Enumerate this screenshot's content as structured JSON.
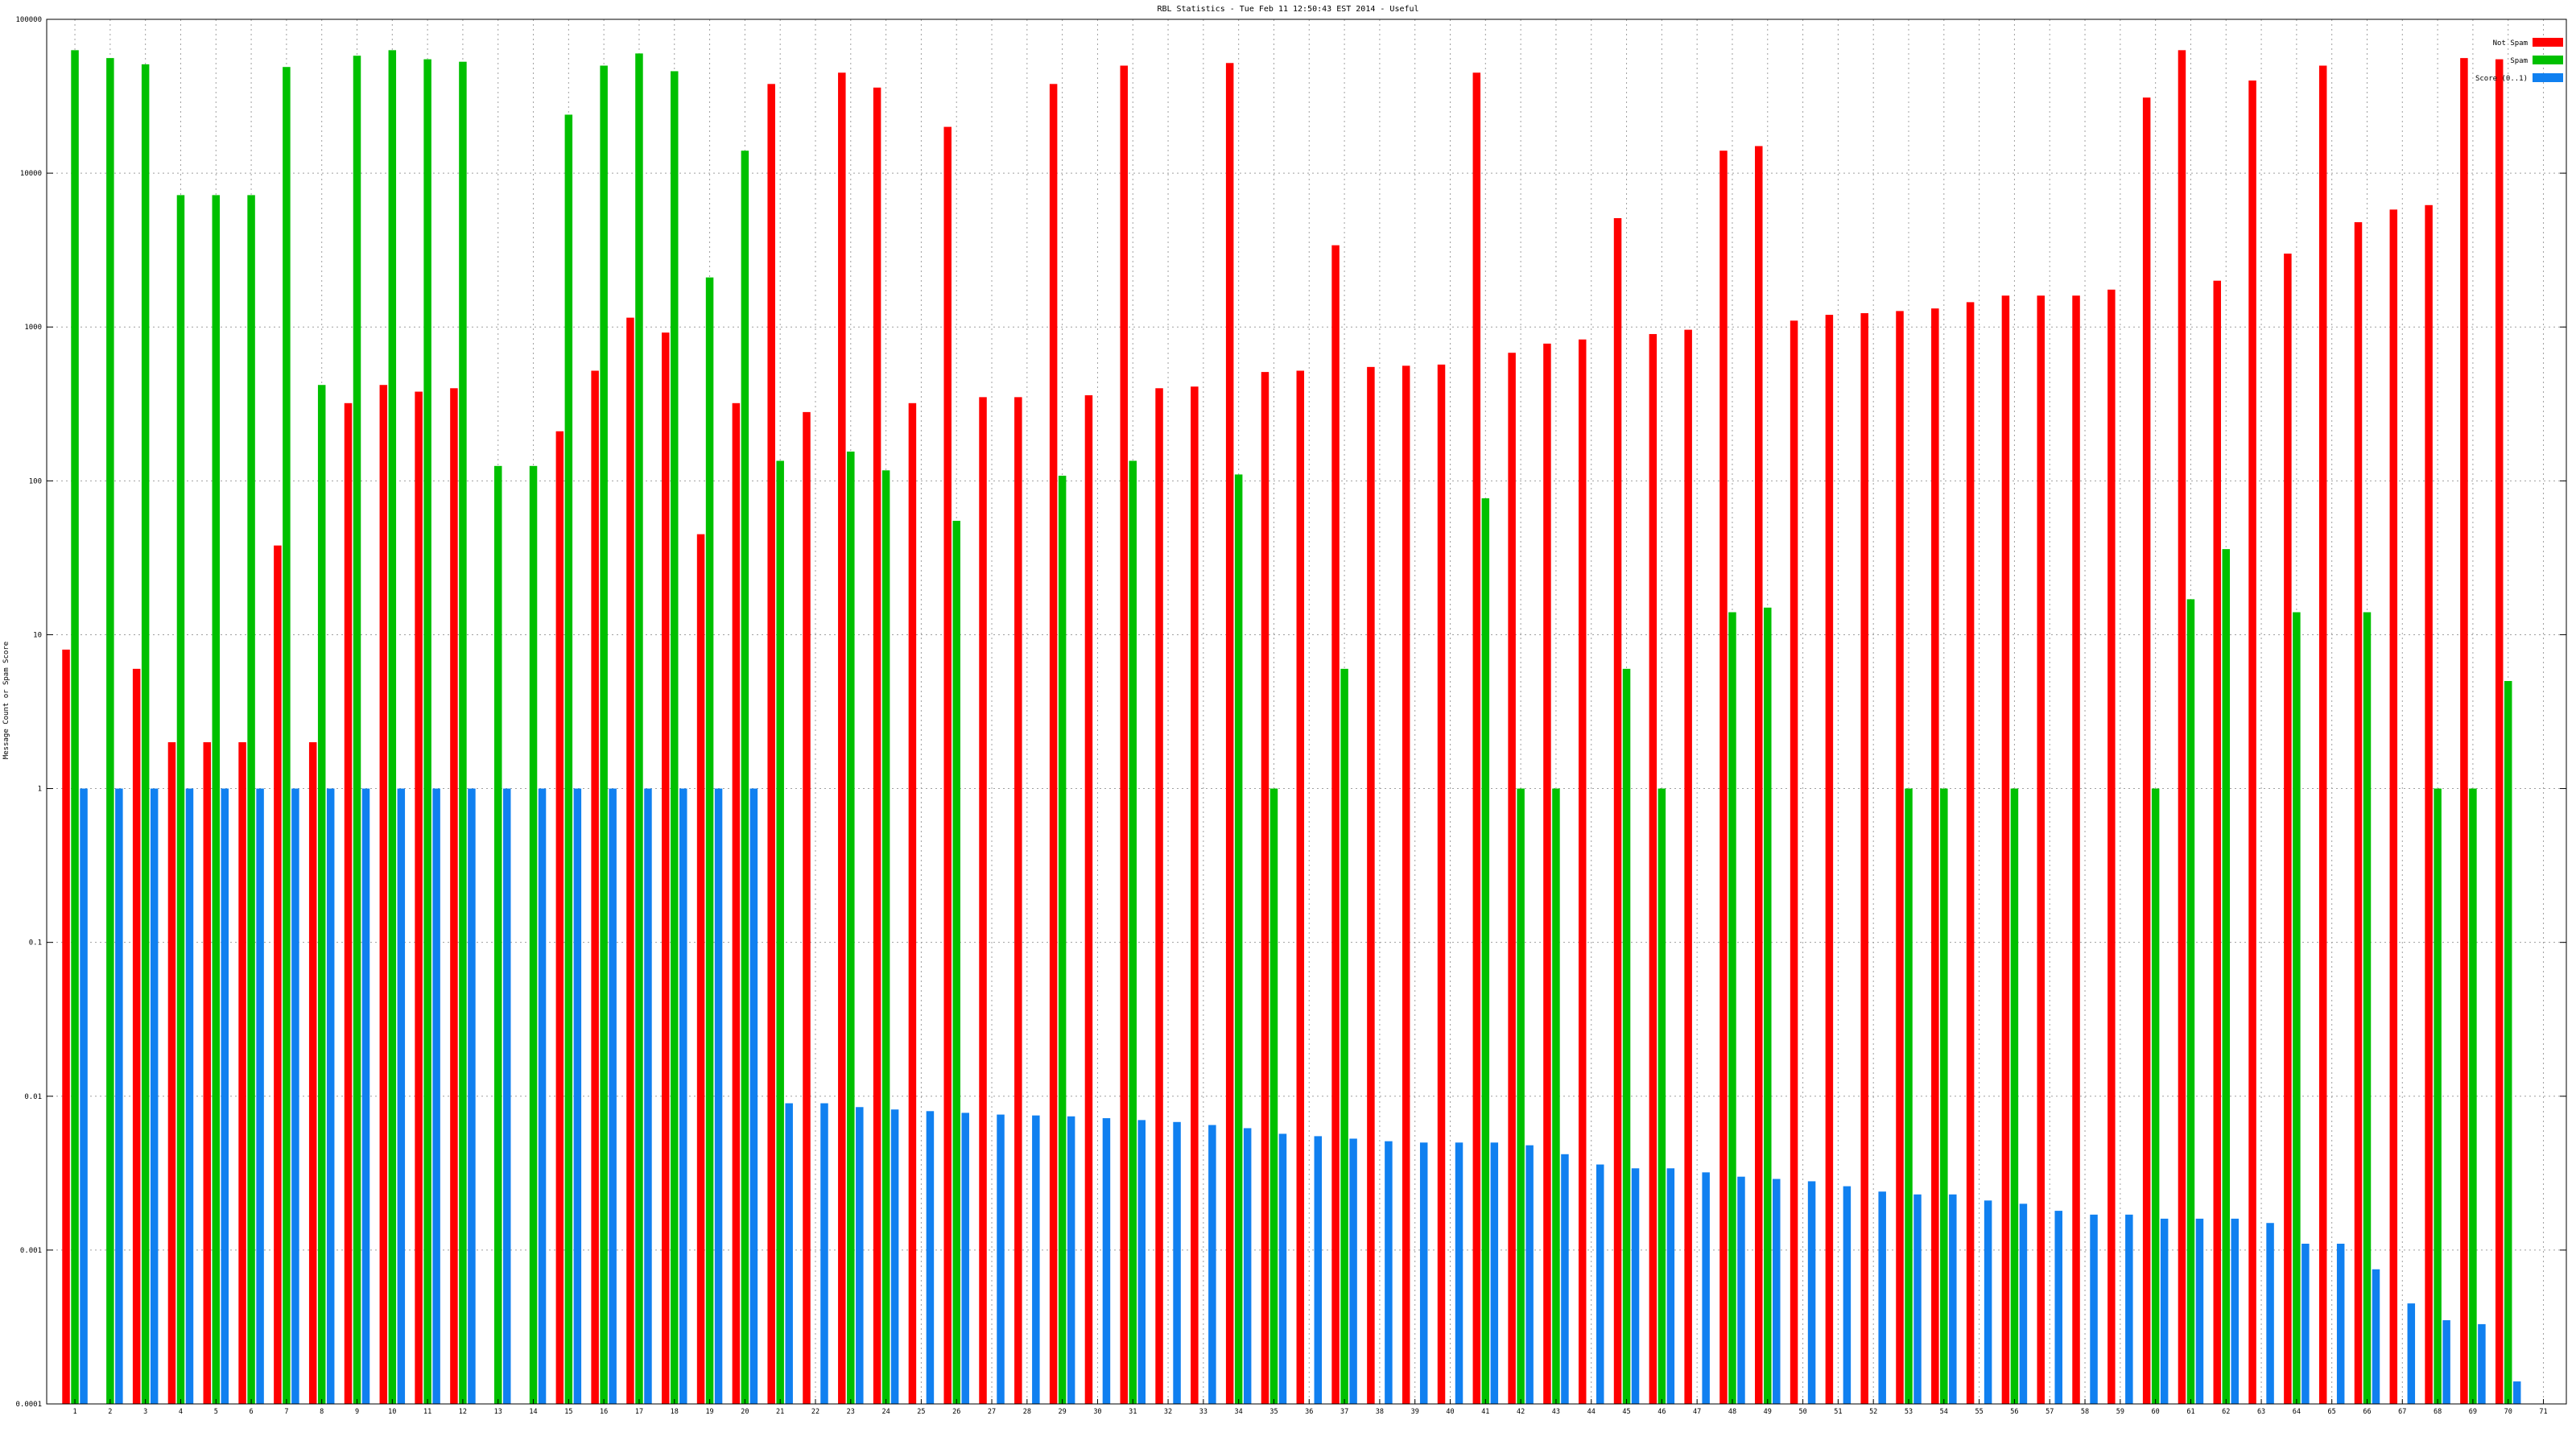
{
  "chart_data": {
    "type": "bar",
    "title": "RBL Statistics - Tue Feb 11 12:50:43 EST 2014 - Useful",
    "xlabel": "",
    "ylabel": "Message Count or Spam Score",
    "yscale": "log",
    "ylim": [
      0.0001,
      100000
    ],
    "yticks": [
      {
        "value": 0.0001,
        "label": "0.0001"
      },
      {
        "value": 0.001,
        "label": "0.001"
      },
      {
        "value": 0.01,
        "label": "0.01"
      },
      {
        "value": 0.1,
        "label": "0.1"
      },
      {
        "value": 1,
        "label": "1"
      },
      {
        "value": 10,
        "label": "10"
      },
      {
        "value": 100,
        "label": "100"
      },
      {
        "value": 1000,
        "label": "1000"
      },
      {
        "value": 10000,
        "label": "10000"
      },
      {
        "value": 100000,
        "label": "100000"
      }
    ],
    "grid": true,
    "legend_position": "top-right",
    "categories": [
      "1",
      "2",
      "3",
      "4",
      "5",
      "6",
      "7",
      "8",
      "9",
      "10",
      "11",
      "12",
      "13",
      "14",
      "15",
      "16",
      "17",
      "18",
      "19",
      "20",
      "21",
      "22",
      "23",
      "24",
      "25",
      "26",
      "27",
      "28",
      "29",
      "30",
      "31",
      "32",
      "33",
      "34",
      "35",
      "36",
      "37",
      "38",
      "39",
      "40",
      "41",
      "42",
      "43",
      "44",
      "45",
      "46",
      "47",
      "48",
      "49",
      "50",
      "51",
      "52",
      "53",
      "54",
      "55",
      "56",
      "57",
      "58",
      "59",
      "60",
      "61",
      "62",
      "63",
      "64",
      "65",
      "66",
      "67",
      "68",
      "69",
      "70",
      "71"
    ],
    "series": [
      {
        "name": "Not Spam",
        "color": "#ff0000",
        "values": [
          8,
          null,
          6,
          2,
          2,
          2,
          38,
          2,
          320,
          420,
          380,
          400,
          null,
          null,
          210,
          520,
          1150,
          920,
          45,
          320,
          38000,
          280,
          45000,
          36000,
          320,
          20000,
          350,
          350,
          38000,
          360,
          50000,
          400,
          410,
          52000,
          510,
          520,
          3400,
          550,
          560,
          570,
          45000,
          680,
          780,
          830,
          5100,
          900,
          960,
          14000,
          15000,
          1100,
          1200,
          1230,
          1270,
          1320,
          1450,
          1600,
          1600,
          1600,
          1750,
          31000,
          63000,
          2000,
          40000,
          3000,
          50000,
          4800,
          5800,
          6200,
          56000,
          55000,
          null
        ],
        "values_note": ""
      },
      {
        "name": "Spam",
        "color": "#00c000",
        "values": [
          63000,
          56000,
          51000,
          7200,
          7200,
          7200,
          49000,
          420,
          58000,
          63000,
          55000,
          53000,
          125,
          125,
          24000,
          50000,
          60000,
          46000,
          2100,
          14000,
          135,
          null,
          155,
          117,
          null,
          55,
          null,
          null,
          108,
          null,
          135,
          null,
          null,
          110,
          1,
          null,
          6,
          null,
          null,
          null,
          77,
          1,
          1,
          null,
          6,
          1,
          null,
          14,
          15,
          null,
          null,
          null,
          1,
          1,
          null,
          1,
          null,
          null,
          null,
          1,
          17,
          36,
          null,
          14,
          null,
          14,
          null,
          1,
          1,
          5,
          null
        ]
      },
      {
        "name": "Score (0..1)",
        "color": "#1080f0",
        "values": [
          1,
          1,
          1,
          1,
          1,
          1,
          1,
          1,
          1,
          1,
          1,
          1,
          1,
          1,
          1,
          1,
          1,
          1,
          1,
          1,
          0.009,
          0.009,
          0.0085,
          0.0082,
          0.008,
          0.0078,
          0.0076,
          0.0075,
          0.0074,
          0.0072,
          0.007,
          0.0068,
          0.0065,
          0.0062,
          0.0057,
          0.0055,
          0.0053,
          0.0051,
          0.005,
          0.005,
          0.005,
          0.0048,
          0.0042,
          0.0036,
          0.0034,
          0.0034,
          0.0032,
          0.003,
          0.0029,
          0.0028,
          0.0026,
          0.0024,
          0.0023,
          0.0023,
          0.0021,
          0.002,
          0.0018,
          0.0017,
          0.0017,
          0.0016,
          0.0016,
          0.0016,
          0.0015,
          0.0011,
          0.0011,
          0.00075,
          0.00045,
          0.00035,
          0.00033,
          0.00014,
          null
        ]
      }
    ]
  }
}
